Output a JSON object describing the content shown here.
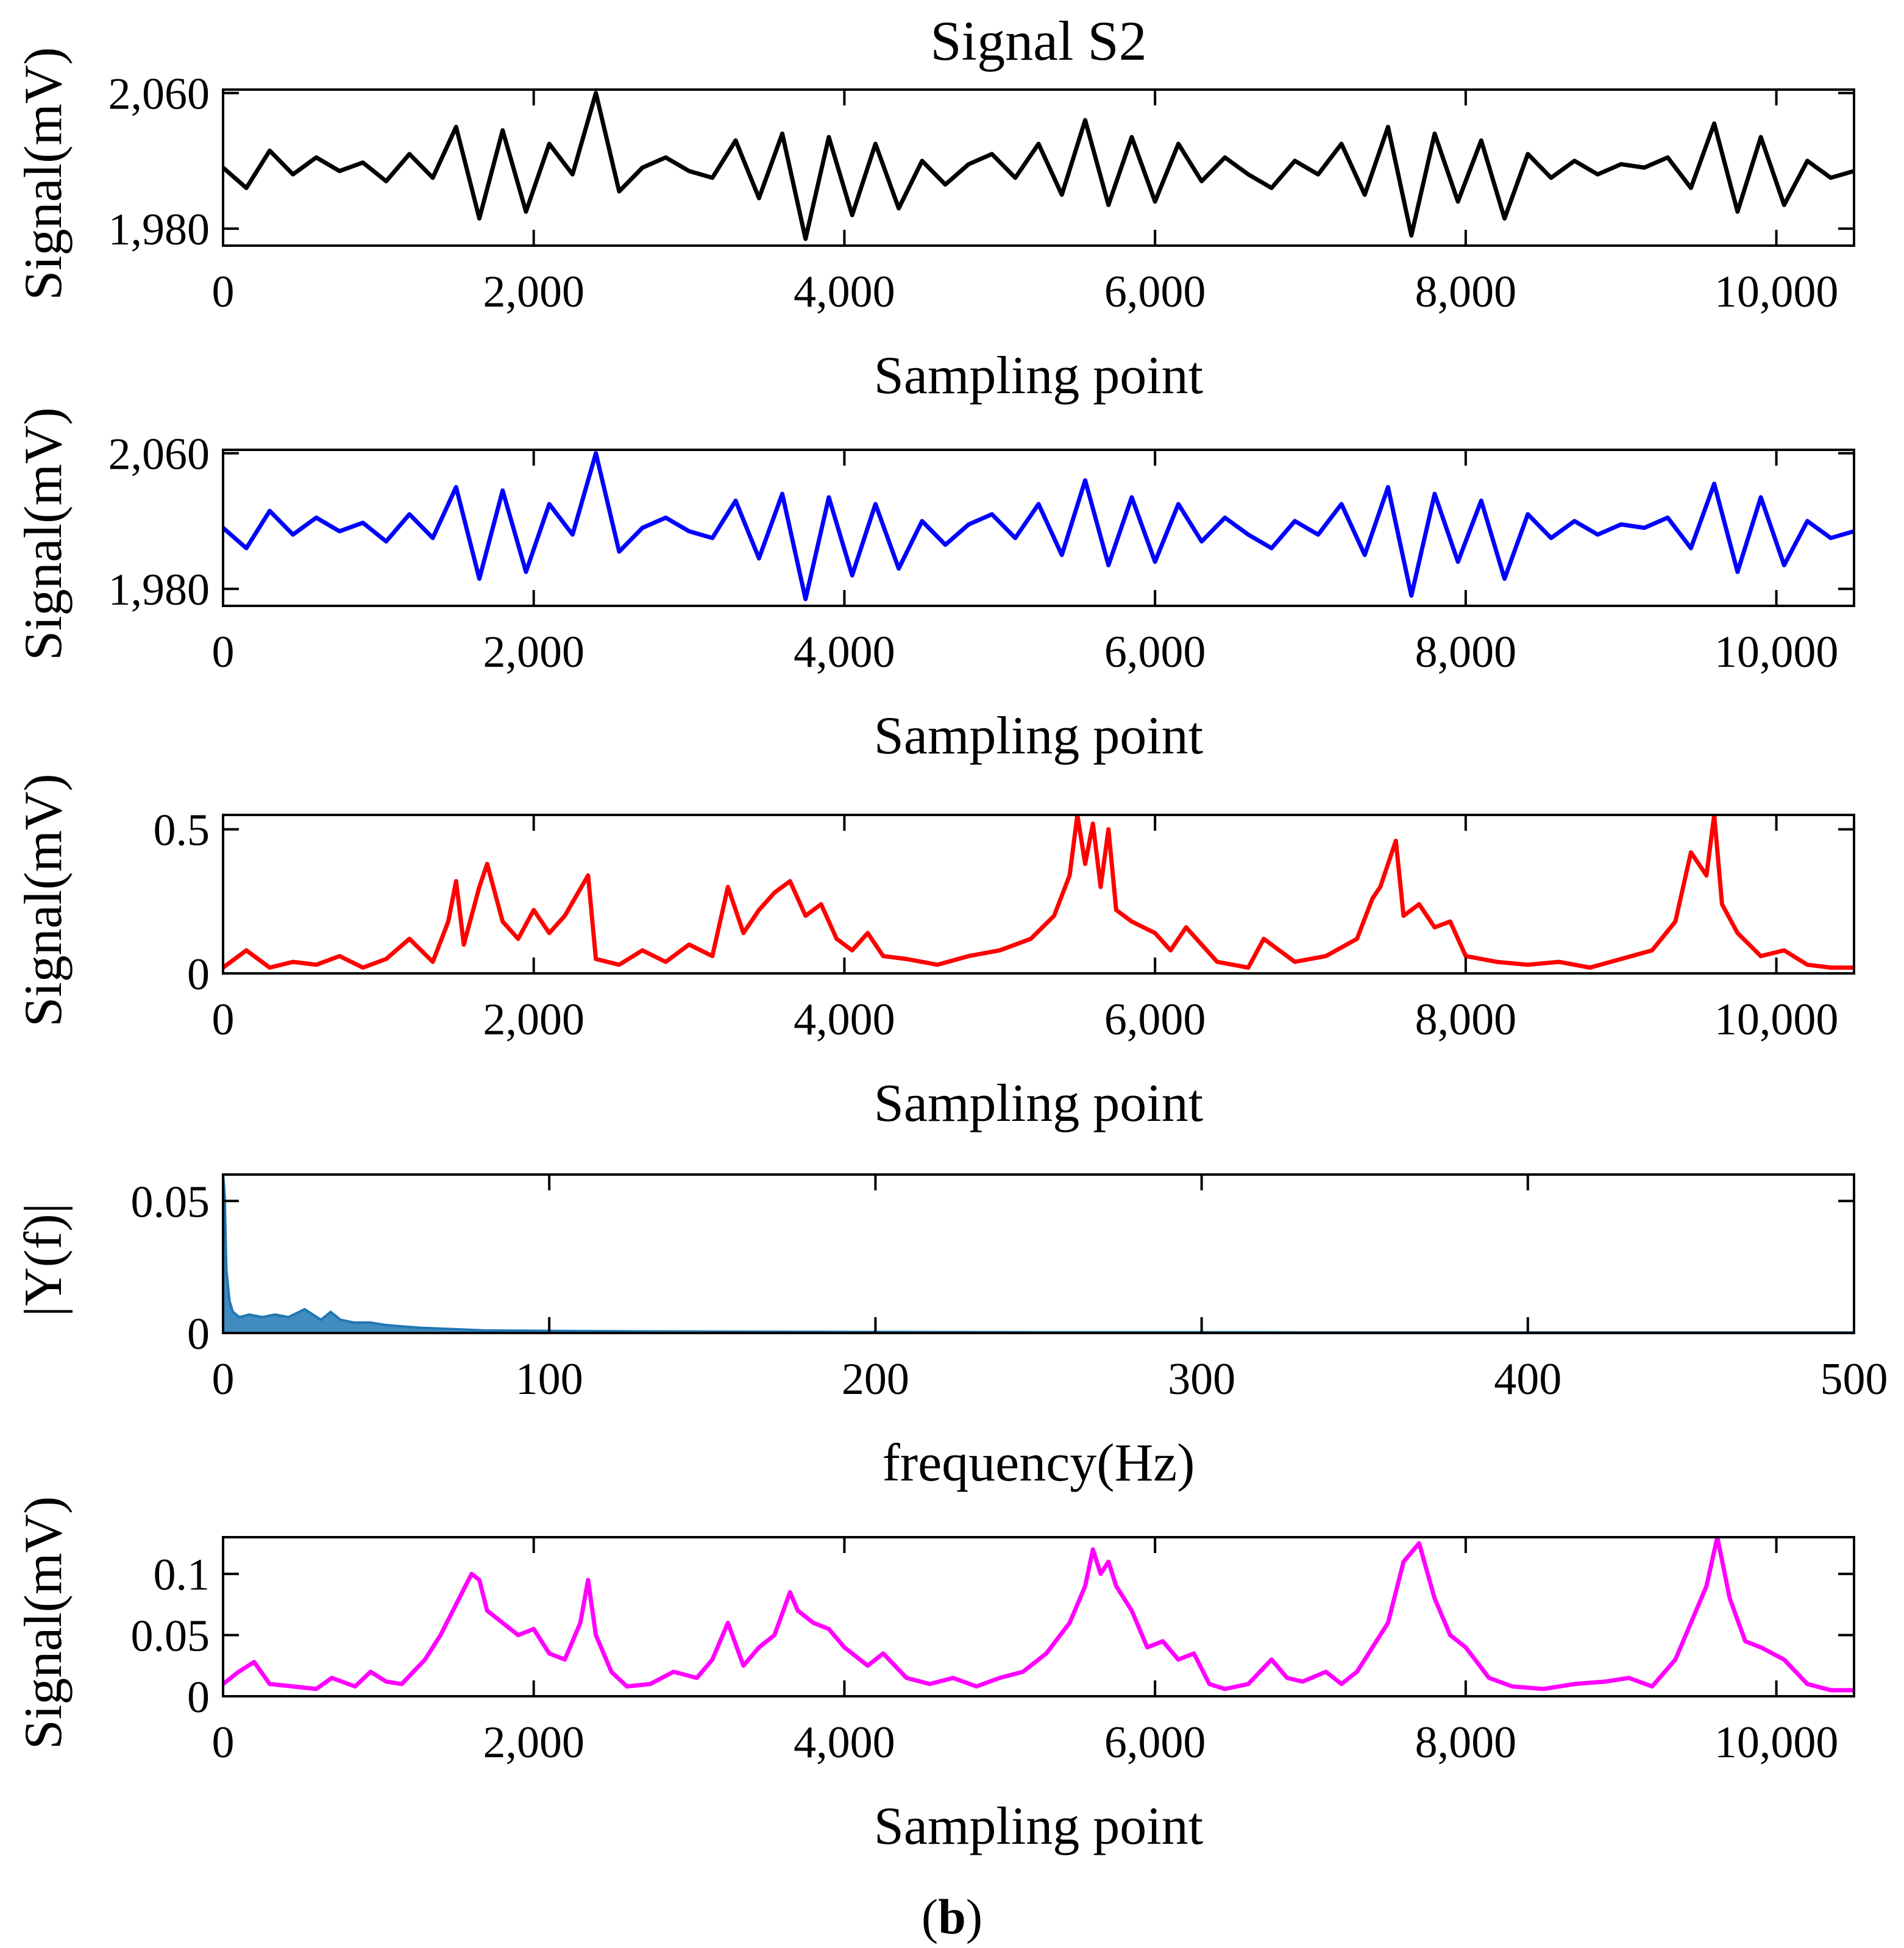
{
  "figure": {
    "title": "Signal S2",
    "caption_open": "(",
    "caption_letter": "b",
    "caption_close": ")"
  },
  "colors": {
    "black": "#000000",
    "blue": "#0000ff",
    "red": "#ff0000",
    "spectrum": "#1f77b4",
    "magenta": "#ff00ff"
  },
  "chart_data": [
    {
      "type": "line",
      "color_key": "black",
      "title": "Signal S2",
      "xlabel": "Sampling point",
      "ylabel": "Signal(mV)",
      "xlim": [
        0,
        10500
      ],
      "ylim": [
        1970,
        2062
      ],
      "xticks": [
        0,
        2000,
        4000,
        6000,
        8000,
        10000
      ],
      "xtick_labels": [
        "0",
        "2,000",
        "4,000",
        "6,000",
        "8,000",
        "10,000"
      ],
      "yticks": [
        1980,
        2060
      ],
      "ytick_labels": [
        "1,980",
        "2,060"
      ],
      "x": [
        0,
        150,
        300,
        450,
        600,
        750,
        900,
        1050,
        1200,
        1350,
        1500,
        1650,
        1800,
        1950,
        2100,
        2250,
        2400,
        2550,
        2700,
        2850,
        3000,
        3150,
        3300,
        3450,
        3600,
        3750,
        3900,
        4050,
        4200,
        4350,
        4500,
        4650,
        4800,
        4950,
        5100,
        5250,
        5400,
        5550,
        5700,
        5850,
        6000,
        6150,
        6300,
        6450,
        6600,
        6750,
        6900,
        7050,
        7200,
        7350,
        7500,
        7650,
        7800,
        7950,
        8100,
        8250,
        8400,
        8550,
        8700,
        8850,
        9000,
        9150,
        9300,
        9450,
        9600,
        9750,
        9900,
        10050,
        10200,
        10350,
        10500
      ],
      "y": [
        2016,
        2004,
        2026,
        2012,
        2022,
        2014,
        2019,
        2008,
        2024,
        2010,
        2040,
        1986,
        2038,
        1990,
        2030,
        2012,
        2060,
        2002,
        2016,
        2022,
        2014,
        2010,
        2032,
        1998,
        2036,
        1974,
        2034,
        1988,
        2030,
        1992,
        2020,
        2006,
        2018,
        2024,
        2010,
        2030,
        2000,
        2044,
        1994,
        2034,
        1996,
        2030,
        2008,
        2022,
        2012,
        2004,
        2020,
        2012,
        2030,
        2000,
        2040,
        1976,
        2036,
        1996,
        2032,
        1986,
        2024,
        2010,
        2020,
        2012,
        2018,
        2016,
        2022,
        2004,
        2042,
        1990,
        2034,
        1994,
        2020,
        2010,
        2014
      ]
    },
    {
      "type": "line",
      "color_key": "blue",
      "xlabel": "Sampling point",
      "ylabel": "Signal(mV)",
      "xlim": [
        0,
        10500
      ],
      "ylim": [
        1970,
        2062
      ],
      "xticks": [
        0,
        2000,
        4000,
        6000,
        8000,
        10000
      ],
      "xtick_labels": [
        "0",
        "2,000",
        "4,000",
        "6,000",
        "8,000",
        "10,000"
      ],
      "yticks": [
        1980,
        2060
      ],
      "ytick_labels": [
        "1,980",
        "2,060"
      ],
      "x": [
        0,
        150,
        300,
        450,
        600,
        750,
        900,
        1050,
        1200,
        1350,
        1500,
        1650,
        1800,
        1950,
        2100,
        2250,
        2400,
        2550,
        2700,
        2850,
        3000,
        3150,
        3300,
        3450,
        3600,
        3750,
        3900,
        4050,
        4200,
        4350,
        4500,
        4650,
        4800,
        4950,
        5100,
        5250,
        5400,
        5550,
        5700,
        5850,
        6000,
        6150,
        6300,
        6450,
        6600,
        6750,
        6900,
        7050,
        7200,
        7350,
        7500,
        7650,
        7800,
        7950,
        8100,
        8250,
        8400,
        8550,
        8700,
        8850,
        9000,
        9150,
        9300,
        9450,
        9600,
        9750,
        9900,
        10050,
        10200,
        10350,
        10500
      ],
      "y": [
        2016,
        2004,
        2026,
        2012,
        2022,
        2014,
        2019,
        2008,
        2024,
        2010,
        2040,
        1986,
        2038,
        1990,
        2030,
        2012,
        2060,
        2002,
        2016,
        2022,
        2014,
        2010,
        2032,
        1998,
        2036,
        1974,
        2034,
        1988,
        2030,
        1992,
        2020,
        2006,
        2018,
        2024,
        2010,
        2030,
        2000,
        2044,
        1994,
        2034,
        1996,
        2030,
        2008,
        2022,
        2012,
        2004,
        2020,
        2012,
        2030,
        2000,
        2040,
        1976,
        2036,
        1996,
        2032,
        1986,
        2024,
        2010,
        2020,
        2012,
        2018,
        2016,
        2022,
        2004,
        2042,
        1990,
        2034,
        1994,
        2020,
        2010,
        2014
      ]
    },
    {
      "type": "line",
      "color_key": "red",
      "xlabel": "Sampling point",
      "ylabel": "Signal(mV)",
      "xlim": [
        0,
        10500
      ],
      "ylim": [
        0,
        0.55
      ],
      "xticks": [
        0,
        2000,
        4000,
        6000,
        8000,
        10000
      ],
      "xtick_labels": [
        "0",
        "2,000",
        "4,000",
        "6,000",
        "8,000",
        "10,000"
      ],
      "yticks": [
        0,
        0.5
      ],
      "ytick_labels": [
        "0",
        "0.5"
      ],
      "x": [
        0,
        150,
        300,
        450,
        600,
        750,
        900,
        1050,
        1200,
        1350,
        1450,
        1500,
        1550,
        1650,
        1700,
        1800,
        1900,
        2000,
        2100,
        2200,
        2350,
        2400,
        2550,
        2700,
        2850,
        3000,
        3150,
        3250,
        3350,
        3450,
        3550,
        3650,
        3750,
        3850,
        3950,
        4050,
        4150,
        4250,
        4400,
        4600,
        4800,
        5000,
        5200,
        5350,
        5450,
        5500,
        5550,
        5600,
        5650,
        5700,
        5750,
        5850,
        6000,
        6100,
        6200,
        6400,
        6600,
        6700,
        6900,
        7100,
        7300,
        7400,
        7450,
        7550,
        7600,
        7700,
        7800,
        7900,
        8000,
        8200,
        8400,
        8600,
        8800,
        9000,
        9200,
        9350,
        9450,
        9550,
        9600,
        9650,
        9750,
        9900,
        10050,
        10200,
        10350,
        10500
      ],
      "y": [
        0.02,
        0.08,
        0.02,
        0.04,
        0.03,
        0.06,
        0.02,
        0.05,
        0.12,
        0.04,
        0.18,
        0.32,
        0.1,
        0.3,
        0.38,
        0.18,
        0.12,
        0.22,
        0.14,
        0.2,
        0.34,
        0.05,
        0.03,
        0.08,
        0.04,
        0.1,
        0.06,
        0.3,
        0.14,
        0.22,
        0.28,
        0.32,
        0.2,
        0.24,
        0.12,
        0.08,
        0.14,
        0.06,
        0.05,
        0.03,
        0.06,
        0.08,
        0.12,
        0.2,
        0.34,
        0.55,
        0.38,
        0.52,
        0.3,
        0.5,
        0.22,
        0.18,
        0.14,
        0.08,
        0.16,
        0.04,
        0.02,
        0.12,
        0.04,
        0.06,
        0.12,
        0.26,
        0.3,
        0.46,
        0.2,
        0.24,
        0.16,
        0.18,
        0.06,
        0.04,
        0.03,
        0.04,
        0.02,
        0.05,
        0.08,
        0.18,
        0.42,
        0.34,
        0.55,
        0.24,
        0.14,
        0.06,
        0.08,
        0.03,
        0.02,
        0.02
      ]
    },
    {
      "type": "area",
      "color_key": "spectrum",
      "xlabel": "frequency(Hz)",
      "ylabel": "|Y(f)|",
      "xlim": [
        0,
        500
      ],
      "ylim": [
        0,
        0.06
      ],
      "xticks": [
        0,
        100,
        200,
        300,
        400,
        500
      ],
      "xtick_labels": [
        "0",
        "100",
        "200",
        "300",
        "400",
        "500"
      ],
      "yticks": [
        0,
        0.05
      ],
      "ytick_labels": [
        "0",
        "0.05"
      ],
      "x": [
        0,
        0.5,
        1,
        2,
        3,
        5,
        8,
        12,
        16,
        20,
        25,
        30,
        33,
        36,
        40,
        45,
        50,
        60,
        70,
        80,
        100,
        130,
        160,
        200,
        250,
        300,
        350,
        400,
        450,
        500
      ],
      "y": [
        0.06,
        0.052,
        0.024,
        0.012,
        0.008,
        0.006,
        0.007,
        0.006,
        0.007,
        0.006,
        0.009,
        0.005,
        0.008,
        0.005,
        0.004,
        0.004,
        0.003,
        0.002,
        0.0015,
        0.001,
        0.0008,
        0.0006,
        0.0005,
        0.0004,
        0.0003,
        0.0003,
        0.0002,
        0.0002,
        0.0002,
        0.0002
      ]
    },
    {
      "type": "line",
      "color_key": "magenta",
      "xlabel": "Sampling point",
      "ylabel": "Signal(mV)",
      "xlim": [
        0,
        10500
      ],
      "ylim": [
        0,
        0.13
      ],
      "xticks": [
        0,
        2000,
        4000,
        6000,
        8000,
        10000
      ],
      "xtick_labels": [
        "0",
        "2,000",
        "4,000",
        "6,000",
        "8,000",
        "10,000"
      ],
      "yticks": [
        0,
        0.05,
        0.1
      ],
      "ytick_labels": [
        "0",
        "0.05",
        "0.1"
      ],
      "x": [
        0,
        100,
        200,
        300,
        450,
        600,
        700,
        850,
        950,
        1050,
        1150,
        1300,
        1400,
        1500,
        1600,
        1650,
        1700,
        1800,
        1900,
        2000,
        2100,
        2200,
        2300,
        2350,
        2400,
        2500,
        2600,
        2750,
        2900,
        3050,
        3150,
        3250,
        3350,
        3450,
        3550,
        3650,
        3700,
        3800,
        3900,
        4000,
        4150,
        4250,
        4400,
        4550,
        4700,
        4850,
        5000,
        5150,
        5300,
        5450,
        5550,
        5600,
        5650,
        5700,
        5750,
        5850,
        5950,
        6050,
        6150,
        6250,
        6350,
        6450,
        6600,
        6750,
        6850,
        6950,
        7100,
        7200,
        7300,
        7400,
        7500,
        7600,
        7700,
        7800,
        7900,
        8000,
        8150,
        8300,
        8500,
        8700,
        8900,
        9050,
        9200,
        9350,
        9450,
        9550,
        9620,
        9700,
        9800,
        9900,
        10050,
        10200,
        10350,
        10500
      ],
      "y": [
        0.01,
        0.02,
        0.028,
        0.01,
        0.008,
        0.006,
        0.015,
        0.008,
        0.02,
        0.012,
        0.01,
        0.03,
        0.05,
        0.075,
        0.1,
        0.095,
        0.07,
        0.06,
        0.05,
        0.055,
        0.035,
        0.03,
        0.06,
        0.095,
        0.05,
        0.02,
        0.008,
        0.01,
        0.02,
        0.015,
        0.03,
        0.06,
        0.025,
        0.04,
        0.05,
        0.085,
        0.07,
        0.06,
        0.055,
        0.04,
        0.025,
        0.035,
        0.015,
        0.01,
        0.015,
        0.008,
        0.015,
        0.02,
        0.035,
        0.06,
        0.09,
        0.12,
        0.1,
        0.11,
        0.09,
        0.07,
        0.04,
        0.045,
        0.03,
        0.035,
        0.01,
        0.006,
        0.01,
        0.03,
        0.015,
        0.012,
        0.02,
        0.01,
        0.02,
        0.04,
        0.06,
        0.11,
        0.125,
        0.08,
        0.05,
        0.04,
        0.015,
        0.008,
        0.006,
        0.01,
        0.012,
        0.015,
        0.008,
        0.03,
        0.06,
        0.09,
        0.13,
        0.08,
        0.045,
        0.04,
        0.03,
        0.01,
        0.005,
        0.005
      ]
    }
  ]
}
